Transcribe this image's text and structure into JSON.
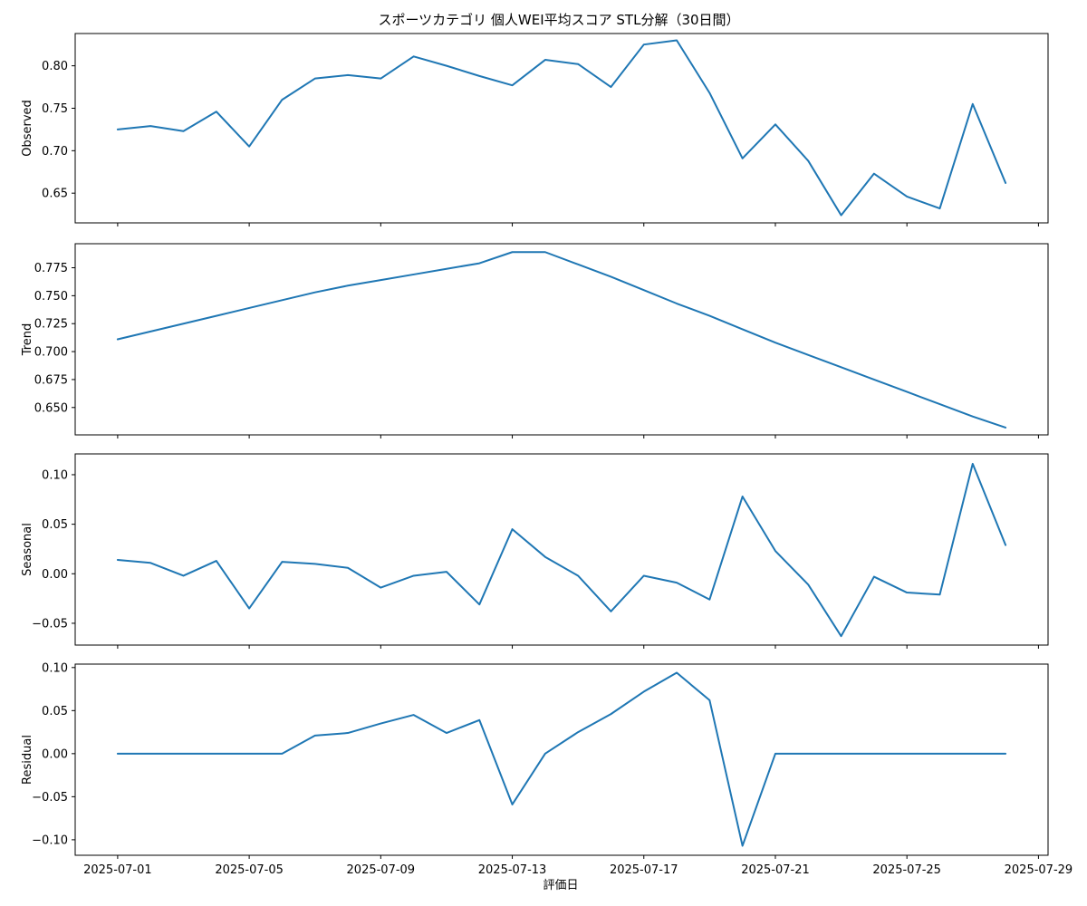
{
  "chart_data": {
    "type": "line",
    "title": "スポーツカテゴリ 個人WEI平均スコア STL分解（30日間）",
    "xlabel": "評価日",
    "line_color": "#1f77b4",
    "x": [
      "2025-07-01",
      "2025-07-02",
      "2025-07-03",
      "2025-07-04",
      "2025-07-05",
      "2025-07-06",
      "2025-07-07",
      "2025-07-08",
      "2025-07-09",
      "2025-07-10",
      "2025-07-11",
      "2025-07-12",
      "2025-07-13",
      "2025-07-14",
      "2025-07-15",
      "2025-07-16",
      "2025-07-17",
      "2025-07-18",
      "2025-07-19",
      "2025-07-20",
      "2025-07-21",
      "2025-07-22",
      "2025-07-23",
      "2025-07-24",
      "2025-07-25",
      "2025-07-26",
      "2025-07-27",
      "2025-07-28"
    ],
    "xlim": [
      "2025-06-29T17:00",
      "2025-07-29T07:00"
    ],
    "x_ticks": [
      "2025-07-01",
      "2025-07-05",
      "2025-07-09",
      "2025-07-13",
      "2025-07-17",
      "2025-07-21",
      "2025-07-25",
      "2025-07-29"
    ],
    "panels": [
      {
        "ylabel": "Observed",
        "ylim": [
          0.615,
          0.838
        ],
        "y_ticks": [
          0.65,
          0.7,
          0.75,
          0.8
        ],
        "y_tick_labels": [
          "0.65",
          "0.70",
          "0.75",
          "0.80"
        ],
        "values": [
          0.725,
          0.729,
          0.723,
          0.746,
          0.705,
          0.76,
          0.785,
          0.789,
          0.785,
          0.811,
          0.8,
          0.788,
          0.777,
          0.807,
          0.802,
          0.775,
          0.825,
          0.83,
          0.768,
          0.691,
          0.731,
          0.688,
          0.624,
          0.673,
          0.646,
          0.632,
          0.755,
          0.662
        ]
      },
      {
        "ylabel": "Trend",
        "ylim": [
          0.6255,
          0.7965
        ],
        "y_ticks": [
          0.65,
          0.675,
          0.7,
          0.725,
          0.75,
          0.775
        ],
        "y_tick_labels": [
          "0.650",
          "0.675",
          "0.700",
          "0.725",
          "0.750",
          "0.775"
        ],
        "values": [
          0.711,
          0.718,
          0.725,
          0.732,
          0.739,
          0.746,
          0.753,
          0.759,
          0.764,
          0.769,
          0.774,
          0.779,
          0.789,
          0.789,
          0.778,
          0.767,
          0.755,
          0.743,
          0.732,
          0.72,
          0.708,
          0.697,
          0.686,
          0.675,
          0.664,
          0.653,
          0.642,
          0.632
        ]
      },
      {
        "ylabel": "Seasonal",
        "ylim": [
          -0.072,
          0.121
        ],
        "y_ticks": [
          -0.05,
          0.0,
          0.05,
          0.1
        ],
        "y_tick_labels": [
          "−0.05",
          "0.00",
          "0.05",
          "0.10"
        ],
        "values": [
          0.014,
          0.011,
          -0.002,
          0.013,
          -0.035,
          0.012,
          0.01,
          0.006,
          -0.014,
          -0.002,
          0.002,
          -0.031,
          0.045,
          0.017,
          -0.002,
          -0.038,
          -0.002,
          -0.009,
          -0.026,
          0.078,
          0.023,
          -0.011,
          -0.063,
          -0.003,
          -0.019,
          -0.021,
          0.111,
          0.029
        ]
      },
      {
        "ylabel": "Residual",
        "ylim": [
          -0.118,
          0.104
        ],
        "y_ticks": [
          -0.1,
          -0.05,
          0.0,
          0.05,
          0.1
        ],
        "y_tick_labels": [
          "−0.10",
          "−0.05",
          "0.00",
          "0.05",
          "0.10"
        ],
        "values": [
          0.0,
          0.0,
          0.0,
          0.0,
          0.0,
          0.0,
          0.021,
          0.024,
          0.035,
          0.045,
          0.024,
          0.039,
          -0.059,
          0.0,
          0.025,
          0.046,
          0.072,
          0.094,
          0.062,
          -0.107,
          0.0,
          0.0,
          0.0,
          0.0,
          0.0,
          0.0,
          0.0,
          0.0
        ]
      }
    ]
  }
}
